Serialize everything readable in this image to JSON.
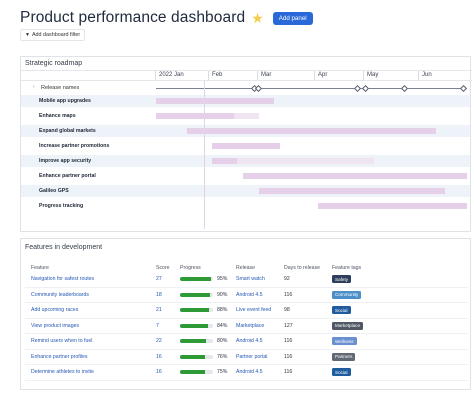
{
  "header": {
    "title": "Product performance dashboard",
    "add_panel_label": "Add panel",
    "filter_label": "Add dashboard filter"
  },
  "roadmap": {
    "title": "Strategic roadmap",
    "months": [
      "2022 Jan",
      "Feb",
      "Mar",
      "Apr",
      "May",
      "Jun"
    ],
    "release_label": "Release names",
    "items": [
      {
        "label": "Mobile app upgrades",
        "start": 0.0,
        "split": 0.38,
        "end": 0.38
      },
      {
        "label": "Enhance maps",
        "start": 0.0,
        "split": 0.25,
        "end": 0.33
      },
      {
        "label": "Expand global markets",
        "start": 0.1,
        "split": 0.1,
        "end": 0.9
      },
      {
        "label": "Increase partner promotions",
        "start": 0.18,
        "split": 0.18,
        "end": 0.4
      },
      {
        "label": "Improve app security",
        "start": 0.18,
        "split": 0.26,
        "end": 0.7
      },
      {
        "label": "Enhance partner portal",
        "start": 0.28,
        "split": 0.28,
        "end": 1.0
      },
      {
        "label": "Galileo GPS",
        "start": 0.33,
        "split": 0.33,
        "end": 0.93
      },
      {
        "label": "Progress tracking",
        "start": 0.52,
        "split": 0.52,
        "end": 1.0
      }
    ]
  },
  "features": {
    "title": "Features in development",
    "columns": [
      "Feature",
      "Score",
      "Progress",
      "Release",
      "Days to release",
      "Feature tags"
    ],
    "rows": [
      {
        "feature": "Navigation for safest routes",
        "score": "27",
        "progress": 0.95,
        "progress_label": "95%",
        "release": "Smart watch",
        "days": "92",
        "tag": "Safety",
        "tag_color": "#2f3e5c"
      },
      {
        "feature": "Community leaderboards",
        "score": "18",
        "progress": 0.9,
        "progress_label": "90%",
        "release": "Android 4.5",
        "days": "116",
        "tag": "Community",
        "tag_color": "#4b8fc8"
      },
      {
        "feature": "Add upcoming races",
        "score": "21",
        "progress": 0.88,
        "progress_label": "88%",
        "release": "Live event feed",
        "days": "98",
        "tag": "Social",
        "tag_color": "#1f5c9e"
      },
      {
        "feature": "View product images",
        "score": "7",
        "progress": 0.84,
        "progress_label": "84%",
        "release": "Marketplace",
        "days": "127",
        "tag": "Marketplace",
        "tag_color": "#505866"
      },
      {
        "feature": "Remind users when to fuel",
        "score": "22",
        "progress": 0.8,
        "progress_label": "80%",
        "release": "Android 4.5",
        "days": "116",
        "tag": "Wellness",
        "tag_color": "#6a8fd0"
      },
      {
        "feature": "Enhance partner profiles",
        "score": "16",
        "progress": 0.76,
        "progress_label": "76%",
        "release": "Partner portal",
        "days": "116",
        "tag": "Partners",
        "tag_color": "#606874"
      },
      {
        "feature": "Determine athletes to invite",
        "score": "16",
        "progress": 0.75,
        "progress_label": "75%",
        "release": "Android 4.5",
        "days": "116",
        "tag": "Social",
        "tag_color": "#1f5c9e"
      }
    ]
  }
}
